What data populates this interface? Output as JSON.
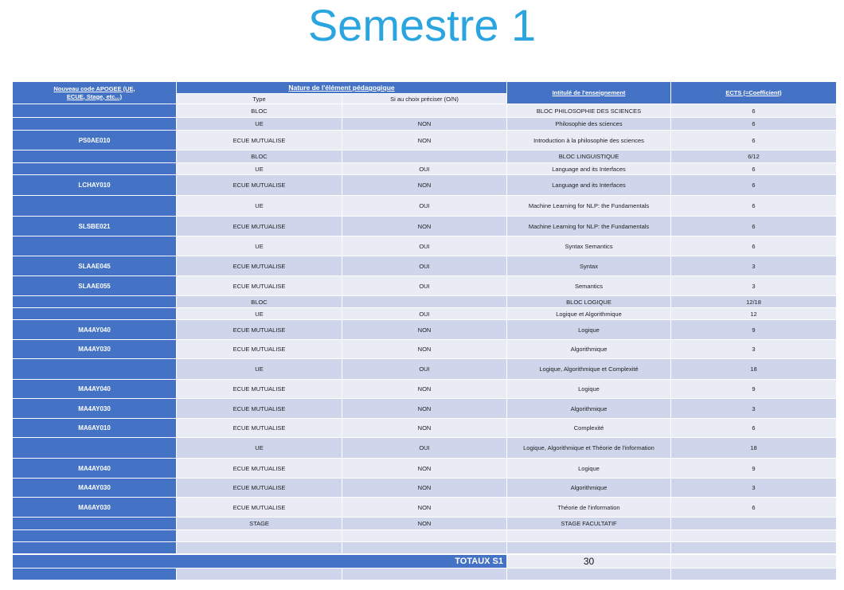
{
  "title": "Semestre 1",
  "table": {
    "headers": {
      "code": "Nouveau code APOGEE (UE, ECUE, Stage, etc...)",
      "nature": "Nature de l'élément pédagogique",
      "type": "Type",
      "choice": "Si au choix préciser (O/N)",
      "label": "Intitulé de l'enseignement",
      "ects": "ECTS (=Coefficient)"
    },
    "rows": [
      {
        "code": "",
        "type": "BLOC",
        "choice": "",
        "label": "BLOC PHILOSOPHIE DES SCIENCES",
        "ects": "6"
      },
      {
        "code": "",
        "type": "UE",
        "choice": "NON",
        "label": "Philosophie des sciences",
        "ects": "6"
      },
      {
        "code": "PS0AE010",
        "type": "ECUE MUTUALISE",
        "choice": "NON",
        "label": "Introduction à la philosophie des sciences",
        "ects": "6"
      },
      {
        "code": "",
        "type": "BLOC",
        "choice": "",
        "label": "BLOC LINGUISTIQUE",
        "ects": "6/12"
      },
      {
        "code": "",
        "type": "UE",
        "choice": "OUI",
        "label": "Language and its Interfaces",
        "ects": "6"
      },
      {
        "code": "LCHAY010",
        "type": "ECUE MUTUALISE",
        "choice": "NON",
        "label": "Language and its Interfaces",
        "ects": "6"
      },
      {
        "code": "",
        "type": "UE",
        "choice": "OUI",
        "label": "Machine Learning for NLP: the Fundamentals",
        "ects": "6"
      },
      {
        "code": "SLSBE021",
        "type": "ECUE MUTUALISE",
        "choice": "NON",
        "label": "Machine Learning for NLP: the Fundamentals",
        "ects": "6"
      },
      {
        "code": "",
        "type": "UE",
        "choice": "OUI",
        "label": "Syntax Semantics",
        "ects": "6"
      },
      {
        "code": "SLAAE045",
        "type": "ECUE MUTUALISE",
        "choice": "OUI",
        "label": "Syntax",
        "ects": "3"
      },
      {
        "code": "SLAAE055",
        "type": "ECUE MUTUALISE",
        "choice": "OUI",
        "label": "Semantics",
        "ects": "3"
      },
      {
        "code": "",
        "type": "BLOC",
        "choice": "",
        "label": "BLOC LOGIQUE",
        "ects": "12/18"
      },
      {
        "code": "",
        "type": "UE",
        "choice": "OUI",
        "label": "Logique et Algorithmique",
        "ects": "12"
      },
      {
        "code": "MA4AY040",
        "type": "ECUE MUTUALISE",
        "choice": "NON",
        "label": "Logique",
        "ects": "9"
      },
      {
        "code": "MA4AY030",
        "type": "ECUE MUTUALISE",
        "choice": "NON",
        "label": "Algorithmique",
        "ects": "3"
      },
      {
        "code": "",
        "type": "UE",
        "choice": "OUI",
        "label": "Logique, Algorithmique et Complexité",
        "ects": "18"
      },
      {
        "code": "MA4AY040",
        "type": "ECUE MUTUALISE",
        "choice": "NON",
        "label": "Logique",
        "ects": "9"
      },
      {
        "code": "MA4AY030",
        "type": "ECUE MUTUALISE",
        "choice": "NON",
        "label": "Algorithmique",
        "ects": "3"
      },
      {
        "code": "MA6AY010",
        "type": "ECUE MUTUALISE",
        "choice": "NON",
        "label": "Complexité",
        "ects": "6"
      },
      {
        "code": "",
        "type": "UE",
        "choice": "OUI",
        "label": "Logique, Algorithmique et Théorie de l'information",
        "ects": "18"
      },
      {
        "code": "MA4AY040",
        "type": "ECUE MUTUALISE",
        "choice": "NON",
        "label": "Logique",
        "ects": "9"
      },
      {
        "code": "MA4AY030",
        "type": "ECUE MUTUALISE",
        "choice": "NON",
        "label": "Algorithmique",
        "ects": "3"
      },
      {
        "code": "MA6AY030",
        "type": "ECUE MUTUALISE",
        "choice": "NON",
        "label": "Théorie de l'information",
        "ects": "6"
      },
      {
        "code": "",
        "type": "STAGE",
        "choice": "NON",
        "label": "STAGE FACULTATIF",
        "ects": ""
      },
      {
        "code": "",
        "type": "",
        "choice": "",
        "label": "",
        "ects": ""
      },
      {
        "code": "",
        "type": "",
        "choice": "",
        "label": "",
        "ects": ""
      }
    ],
    "totals": {
      "label": "TOTAUX S1",
      "value": "30"
    }
  }
}
